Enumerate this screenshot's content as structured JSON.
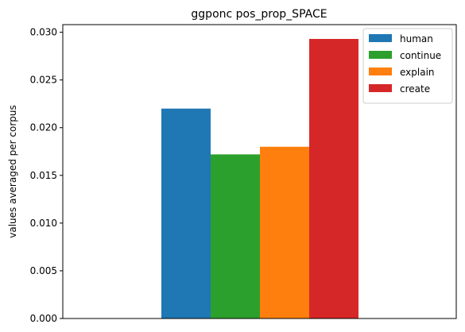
{
  "chart_data": {
    "type": "bar",
    "title": "ggponc pos_prop_SPACE",
    "xlabel": "",
    "ylabel": "values averaged per corpus",
    "categories": [
      ""
    ],
    "ylim": [
      0,
      0.0308
    ],
    "yticks": [
      "0.000",
      "0.005",
      "0.010",
      "0.015",
      "0.020",
      "0.025",
      "0.030"
    ],
    "ytick_values": [
      0,
      0.005,
      0.01,
      0.015,
      0.02,
      0.025,
      0.03
    ],
    "grid": false,
    "legend": "top-right",
    "series": [
      {
        "name": "human",
        "values": [
          0.022
        ],
        "color": "#1f77b4"
      },
      {
        "name": "continue",
        "values": [
          0.0172
        ],
        "color": "#2ca02c"
      },
      {
        "name": "explain",
        "values": [
          0.018
        ],
        "color": "#ff7f0e"
      },
      {
        "name": "create",
        "values": [
          0.0293
        ],
        "color": "#d62728"
      }
    ]
  }
}
